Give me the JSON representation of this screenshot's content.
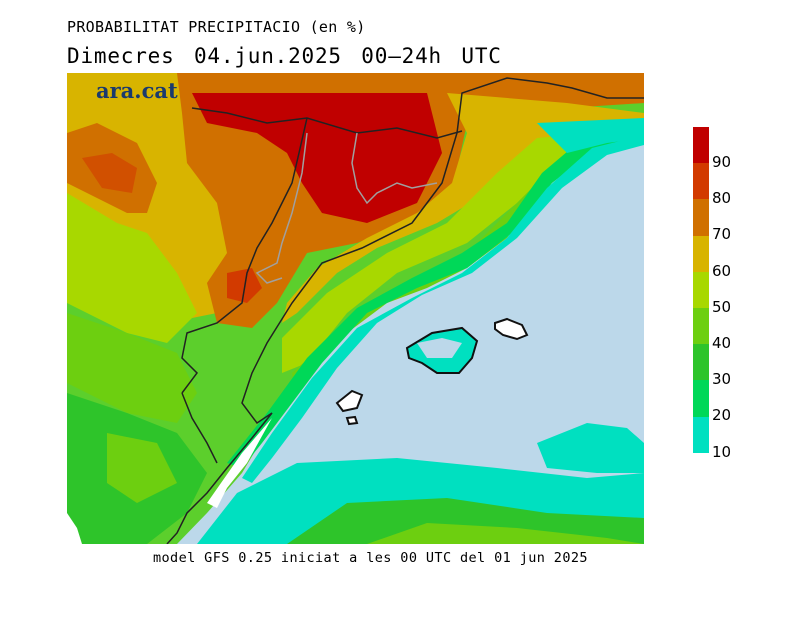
{
  "header": {
    "title": "PROBABILITAT PRECIPITACIO (en %)",
    "subtitle": "Dimecres  04.jun.2025 00—24h UTC"
  },
  "logo": {
    "text": "ara.cat",
    "color": "#1a3a6e"
  },
  "footer": {
    "text": "model GFS 0.25 iniciat a les 00 UTC del 01 jun 2025"
  },
  "legend": {
    "labels": [
      "90",
      "80",
      "70",
      "60",
      "50",
      "40",
      "30",
      "20",
      "10"
    ],
    "colors": [
      "#c00000",
      "#d23a00",
      "#d07000",
      "#d8b400",
      "#a8d800",
      "#6dcf10",
      "#2ec42a",
      "#00d858",
      "#00e0c0"
    ]
  },
  "map": {
    "sea_color": "#bcd8ea",
    "base_color": "#5ccf2c",
    "border_color": "#222222",
    "province_border_color": "#a0a0a0"
  }
}
